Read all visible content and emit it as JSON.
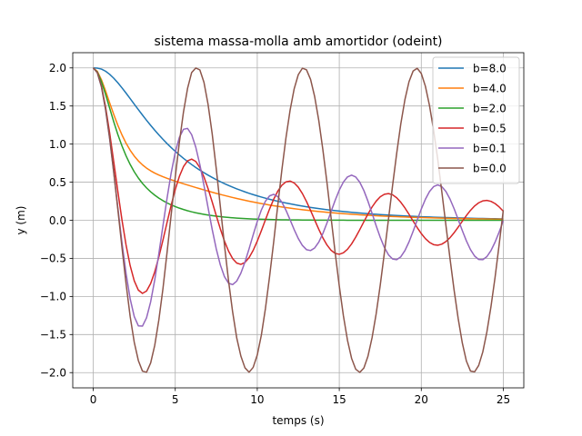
{
  "chart_data": {
    "type": "line",
    "title": "sistema massa-molla amb amortidor (odeint)",
    "xlabel": "temps (s)",
    "ylabel": "y (m)",
    "xlim": [
      -1.25,
      26.25
    ],
    "ylim": [
      -2.2,
      2.2
    ],
    "xticks": [
      0,
      5,
      10,
      15,
      20,
      25
    ],
    "yticks": [
      -2.0,
      -1.5,
      -1.0,
      -0.5,
      0.0,
      0.5,
      1.0,
      1.5,
      2.0
    ],
    "xtick_labels": [
      "0",
      "5",
      "10",
      "15",
      "20",
      "25"
    ],
    "ytick_labels": [
      "−2.0",
      "−1.5",
      "−1.0",
      "−0.5",
      "0.0",
      "0.5",
      "1.0",
      "1.5",
      "2.0"
    ],
    "grid": true,
    "legend_position": "top-right",
    "x": [
      0,
      0.25,
      0.5,
      0.75,
      1,
      1.25,
      1.5,
      1.75,
      2,
      2.25,
      2.5,
      2.75,
      3,
      3.25,
      3.5,
      3.75,
      4,
      4.25,
      4.5,
      4.75,
      5,
      5.25,
      5.5,
      5.75,
      6,
      6.25,
      6.5,
      6.75,
      7,
      7.25,
      7.5,
      7.75,
      8,
      8.25,
      8.5,
      8.75,
      9,
      9.25,
      9.5,
      9.75,
      10,
      10.25,
      10.5,
      10.75,
      11,
      11.25,
      11.5,
      11.75,
      12,
      12.25,
      12.5,
      12.75,
      13,
      13.25,
      13.5,
      13.75,
      14,
      14.25,
      14.5,
      14.75,
      15,
      15.25,
      15.5,
      15.75,
      16,
      16.25,
      16.5,
      16.75,
      17,
      17.25,
      17.5,
      17.75,
      18,
      18.25,
      18.5,
      18.75,
      19,
      19.25,
      19.5,
      19.75,
      20,
      20.25,
      20.5,
      20.75,
      21,
      21.25,
      21.5,
      21.75,
      22,
      22.25,
      22.5,
      22.75,
      23,
      23.25,
      23.5,
      23.75,
      24,
      24.25,
      24.5,
      24.75,
      25
    ],
    "series": [
      {
        "name": "b=8.0",
        "color": "#1f77b4",
        "values": [
          2.0,
          1.9978,
          1.9845,
          1.9569,
          1.9161,
          1.8645,
          1.8047,
          1.7389,
          1.6691,
          1.5972,
          1.5246,
          1.4524,
          1.3815,
          1.3124,
          1.2458,
          1.1818,
          1.1206,
          1.0623,
          1.007,
          0.9545,
          0.9048,
          0.8578,
          0.8132,
          0.7711,
          0.7312,
          0.6936,
          0.6579,
          0.6243,
          0.5924,
          0.5623,
          0.5338,
          0.5068,
          0.4813,
          0.4572,
          0.4343,
          0.4127,
          0.3922,
          0.3728,
          0.3544,
          0.337,
          0.3204,
          0.3048,
          0.29,
          0.2759,
          0.2625,
          0.2498,
          0.2378,
          0.2264,
          0.2156,
          0.2053,
          0.1955,
          0.1862,
          0.1774,
          0.169,
          0.161,
          0.1534,
          0.1462,
          0.1393,
          0.1328,
          0.1266,
          0.1207,
          0.115,
          0.1097,
          0.1046,
          0.0997,
          0.0951,
          0.0907,
          0.0865,
          0.0825,
          0.0787,
          0.075,
          0.0716,
          0.0683,
          0.0651,
          0.0621,
          0.0593,
          0.0565,
          0.054,
          0.0515,
          0.0491,
          0.0469,
          0.0447,
          0.0427,
          0.0407,
          0.0389,
          0.0371,
          0.0354,
          0.0338,
          0.0322,
          0.0308,
          0.0294,
          0.028,
          0.0268,
          0.0255,
          0.0244,
          0.0233,
          0.0222,
          0.0212,
          0.0203,
          0.0193,
          0.0185
        ]
      },
      {
        "name": "b=4.0",
        "color": "#ff7f0e",
        "values": [
          2.0,
          1.9553,
          1.8444,
          1.6989,
          1.5418,
          1.3885,
          1.2469,
          1.1208,
          1.0117,
          0.9193,
          0.8424,
          0.7791,
          0.7272,
          0.6845,
          0.6492,
          0.6194,
          0.5938,
          0.5713,
          0.5508,
          0.5319,
          0.5138,
          0.4964,
          0.4795,
          0.4628,
          0.4464,
          0.4303,
          0.4144,
          0.3988,
          0.3834,
          0.3684,
          0.3537,
          0.3394,
          0.3255,
          0.312,
          0.2989,
          0.2862,
          0.274,
          0.2622,
          0.2509,
          0.2399,
          0.2294,
          0.2193,
          0.2096,
          0.2003,
          0.1914,
          0.1828,
          0.1746,
          0.1668,
          0.1593,
          0.1521,
          0.1453,
          0.1387,
          0.1324,
          0.1264,
          0.1206,
          0.1151,
          0.1099,
          0.1049,
          0.1001,
          0.0955,
          0.0911,
          0.0869,
          0.0829,
          0.0791,
          0.0755,
          0.072,
          0.0687,
          0.0655,
          0.0625,
          0.0596,
          0.0568,
          0.0542,
          0.0517,
          0.0493,
          0.047,
          0.0448,
          0.0428,
          0.0408,
          0.0389,
          0.0371,
          0.0354,
          0.0337,
          0.0322,
          0.0307,
          0.0292,
          0.0279,
          0.0266,
          0.0254,
          0.0242,
          0.0231,
          0.022,
          0.021,
          0.02,
          0.0191,
          0.0182,
          0.0173,
          0.0165,
          0.0158,
          0.015,
          0.0143,
          0.0137
        ]
      },
      {
        "name": "b=2.0",
        "color": "#2ca02c",
        "values": [
          2.0,
          1.9469,
          1.8196,
          1.6529,
          1.4715,
          1.2924,
          1.1258,
          0.9766,
          0.8458,
          0.733,
          0.6366,
          0.5545,
          0.4845,
          0.4247,
          0.3734,
          0.3292,
          0.2907,
          0.2573,
          0.228,
          0.2022,
          0.1794,
          0.1593,
          0.1414,
          0.1255,
          0.1113,
          0.0987,
          0.0875,
          0.0775,
          0.0686,
          0.0607,
          0.0536,
          0.0473,
          0.0418,
          0.0368,
          0.0324,
          0.0285,
          0.0251,
          0.022,
          0.0193,
          0.017,
          0.0149,
          0.013,
          0.0114,
          0.01,
          0.0087,
          0.0076,
          0.0066,
          0.0058,
          0.005,
          0.0044,
          0.0038,
          0.0033,
          0.0029,
          0.0025,
          0.0022,
          0.0019,
          0.0016,
          0.0014,
          0.0012,
          0.0011,
          0.0009,
          0.0008,
          0.0007,
          0.0006,
          0.0005,
          0.0005,
          0.0004,
          0.0003,
          0.0003,
          0.0003,
          0.0002,
          0.0002,
          0.0002,
          0.0001,
          0.0001,
          0.0001,
          0.0001,
          0.0001,
          0.0001,
          0.0001,
          0.0001,
          0.0,
          0.0,
          0.0,
          0.0,
          0.0,
          0.0,
          0.0,
          0.0,
          0.0,
          0.0,
          0.0,
          0.0,
          0.0,
          0.0,
          0.0,
          0.0,
          0.0,
          0.0,
          0.0,
          0.0
        ]
      },
      {
        "name": "b=0.5",
        "color": "#d62728",
        "values": [
          2.0,
          1.9386,
          1.7612,
          1.4884,
          1.1469,
          0.7666,
          0.3771,
          0.0056,
          -0.3251,
          -0.5958,
          -0.7951,
          -0.9168,
          -0.9599,
          -0.9282,
          -0.8298,
          -0.676,
          -0.4808,
          -0.2597,
          -0.0282,
          0.1979,
          0.4036,
          0.5757,
          0.7036,
          0.7804,
          0.8029,
          0.7719,
          0.6915,
          0.5694,
          0.4155,
          0.2417,
          0.0608,
          -0.1144,
          -0.2733,
          -0.4056,
          -0.5036,
          -0.5621,
          -0.5787,
          -0.5539,
          -0.4909,
          -0.3951,
          -0.2741,
          -0.1367,
          0.0078,
          0.1486,
          0.2761,
          0.3818,
          0.4593,
          0.5042,
          0.5144,
          0.4903,
          0.4344,
          0.3512,
          0.2468,
          0.1285,
          0.0039,
          -0.1188,
          -0.2305,
          -0.3242,
          -0.3938,
          -0.4352,
          -0.4464,
          -0.4275,
          -0.3809,
          -0.3107,
          -0.2225,
          -0.1229,
          -0.0189,
          0.0823,
          0.1744,
          0.2512,
          0.3081,
          0.3418,
          0.3506,
          0.3345,
          0.2954,
          0.2367,
          0.1627,
          0.0788,
          -0.0092,
          -0.0956,
          -0.1746,
          -0.2409,
          -0.2904,
          -0.3199,
          -0.3278,
          -0.3139,
          -0.2799,
          -0.2286,
          -0.1638,
          -0.0905,
          -0.0135,
          0.0618,
          0.1302,
          0.1873,
          0.2295,
          0.2544,
          0.2607,
          0.2484,
          0.219,
          0.1747,
          0.1188
        ]
      },
      {
        "name": "b=0.1",
        "color": "#9467bd",
        "values": [
          2.0,
          1.937,
          1.7492,
          1.4519,
          1.0686,
          0.6277,
          0.1621,
          -0.2917,
          -0.6986,
          -1.0303,
          -1.2642,
          -1.3856,
          -1.3895,
          -1.2801,
          -1.0705,
          -0.7813,
          -0.4385,
          -0.0712,
          0.2898,
          0.6194,
          0.8922,
          1.0883,
          1.1947,
          1.2057,
          1.1239,
          0.9598,
          0.7303,
          0.4575,
          0.166,
          -0.1185,
          -0.3758,
          -0.5875,
          -0.7404,
          -0.8267,
          -0.8447,
          -0.7977,
          -0.6946,
          -0.5483,
          -0.3746,
          -0.1911,
          -0.0158,
          0.1354,
          0.2506,
          0.3205,
          0.3405,
          0.311,
          0.2377,
          0.1314,
          0.0062,
          -0.1225,
          -0.2392,
          -0.3304,
          -0.3855,
          -0.3973,
          -0.3635,
          -0.2866,
          -0.1737,
          -0.0358,
          0.1141,
          0.2625,
          0.3958,
          0.5014,
          0.5692,
          0.5926,
          0.5688,
          0.4993,
          0.3898,
          0.2494,
          0.0904,
          -0.0725,
          -0.2259,
          -0.3567,
          -0.4537,
          -0.5087,
          -0.5173,
          -0.4794,
          -0.3992,
          -0.2846,
          -0.1466,
          0.0021,
          0.1473,
          0.2759,
          0.3769,
          0.4414,
          0.4637,
          0.4419,
          0.3782,
          0.2786,
          0.1522,
          0.0101,
          -0.1348,
          -0.2706,
          -0.3855,
          -0.4694,
          -0.5147,
          -0.5172,
          -0.477,
          -0.3976,
          -0.2862,
          -0.1525,
          -0.0075
        ]
      },
      {
        "name": "b=0.0",
        "color": "#8c564b",
        "values": [
          2.0,
          1.9375,
          1.7552,
          1.4634,
          1.0806,
          0.6306,
          0.1415,
          -0.3558,
          -0.8323,
          -1.2624,
          -1.6023,
          -1.8418,
          -1.98,
          -1.995,
          -1.8729,
          -1.6411,
          -1.3073,
          -0.8967,
          -0.4216,
          0.0717,
          0.5673,
          1.0238,
          1.4204,
          1.7312,
          1.9394,
          1.9993,
          1.9736,
          1.8105,
          1.5216,
          1.1372,
          0.6753,
          0.1774,
          -0.3268,
          -0.7975,
          -1.2064,
          -1.5467,
          -1.7826,
          -1.9369,
          -1.9949,
          -1.9311,
          -1.7682,
          -1.5069,
          -1.1546,
          -0.7396,
          -0.2852,
          0.196,
          0.6611,
          1.0832,
          1.4431,
          1.7256,
          1.9106,
          1.9961,
          1.9754,
          1.8491,
          1.6219,
          1.3106,
          0.9256,
          0.494,
          0.0339,
          -0.4266,
          -0.8624,
          -1.2521,
          -1.5747,
          -1.812,
          -1.9546,
          -1.9966,
          -1.9393,
          -1.7836,
          -1.5411,
          -1.2262,
          -0.8481,
          -0.427,
          0.0135,
          0.456,
          0.878,
          1.2638,
          1.5817,
          1.8183,
          1.958,
          1.9955,
          1.927,
          1.7598,
          1.5067,
          1.1844,
          0.8045,
          0.3778,
          -0.0635,
          -0.501,
          -0.9166,
          -1.2909,
          -1.609,
          -1.8483,
          -1.979,
          -1.99,
          -1.9056,
          -1.7281,
          -1.4655,
          -1.1314,
          -0.7459,
          -0.3139,
          0.1329
        ]
      }
    ]
  }
}
